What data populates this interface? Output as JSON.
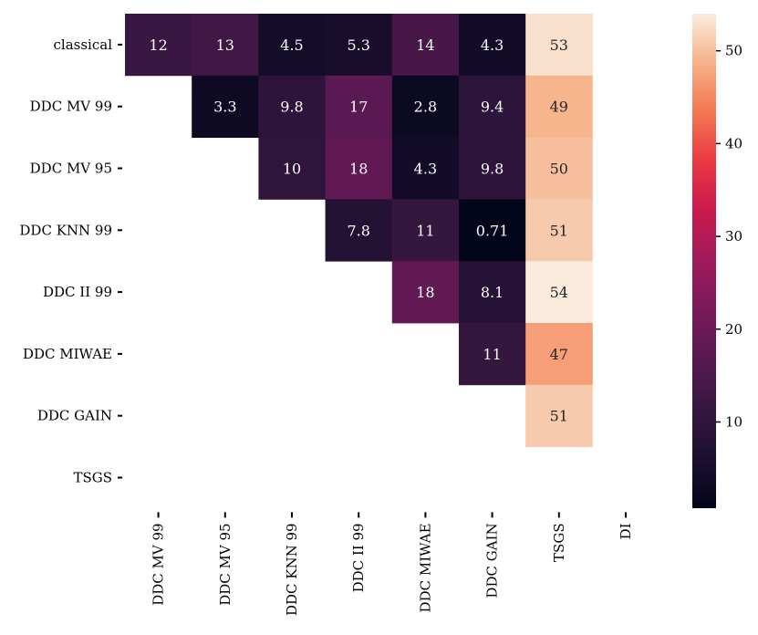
{
  "chart_data": {
    "type": "heatmap",
    "title": "",
    "xlabel": "",
    "ylabel": "",
    "rows": [
      "classical",
      "DDC MV 99",
      "DDC MV 95",
      "DDC KNN 99",
      "DDC II 99",
      "DDC MIWAE",
      "DDC GAIN",
      "TSGS"
    ],
    "columns": [
      "DDC MV 99",
      "DDC MV 95",
      "DDC KNN 99",
      "DDC II 99",
      "DDC MIWAE",
      "DDC GAIN",
      "TSGS",
      "DI"
    ],
    "values": [
      [
        12,
        13,
        4.5,
        5.3,
        14,
        4.3,
        53,
        null
      ],
      [
        null,
        3.3,
        9.8,
        17,
        2.8,
        9.4,
        49,
        null
      ],
      [
        null,
        null,
        10,
        18,
        4.3,
        9.8,
        50,
        null
      ],
      [
        null,
        null,
        null,
        7.8,
        11,
        0.71,
        51,
        null
      ],
      [
        null,
        null,
        null,
        null,
        18,
        8.1,
        54,
        null
      ],
      [
        null,
        null,
        null,
        null,
        null,
        11,
        47,
        null
      ],
      [
        null,
        null,
        null,
        null,
        null,
        null,
        51,
        null
      ],
      [
        null,
        null,
        null,
        null,
        null,
        null,
        null,
        null
      ]
    ],
    "cell_labels": [
      [
        "12",
        "13",
        "4.5",
        "5.3",
        "14",
        "4.3",
        "53",
        ""
      ],
      [
        "",
        "3.3",
        "9.8",
        "17",
        "2.8",
        "9.4",
        "49",
        ""
      ],
      [
        "",
        "",
        "10",
        "18",
        "4.3",
        "9.8",
        "50",
        ""
      ],
      [
        "",
        "",
        "",
        "7.8",
        "11",
        "0.71",
        "51",
        ""
      ],
      [
        "",
        "",
        "",
        "",
        "18",
        "8.1",
        "54",
        ""
      ],
      [
        "",
        "",
        "",
        "",
        "",
        "11",
        "47",
        ""
      ],
      [
        "",
        "",
        "",
        "",
        "",
        "",
        "51",
        ""
      ],
      [
        "",
        "",
        "",
        "",
        "",
        "",
        "",
        ""
      ]
    ],
    "colorbar": {
      "vmin": 0.71,
      "vmax": 54,
      "ticks": [
        10,
        20,
        30,
        40,
        50
      ],
      "tick_labels": [
        "10",
        "20",
        "30",
        "40",
        "50"
      ],
      "colormap": "rocket"
    }
  }
}
